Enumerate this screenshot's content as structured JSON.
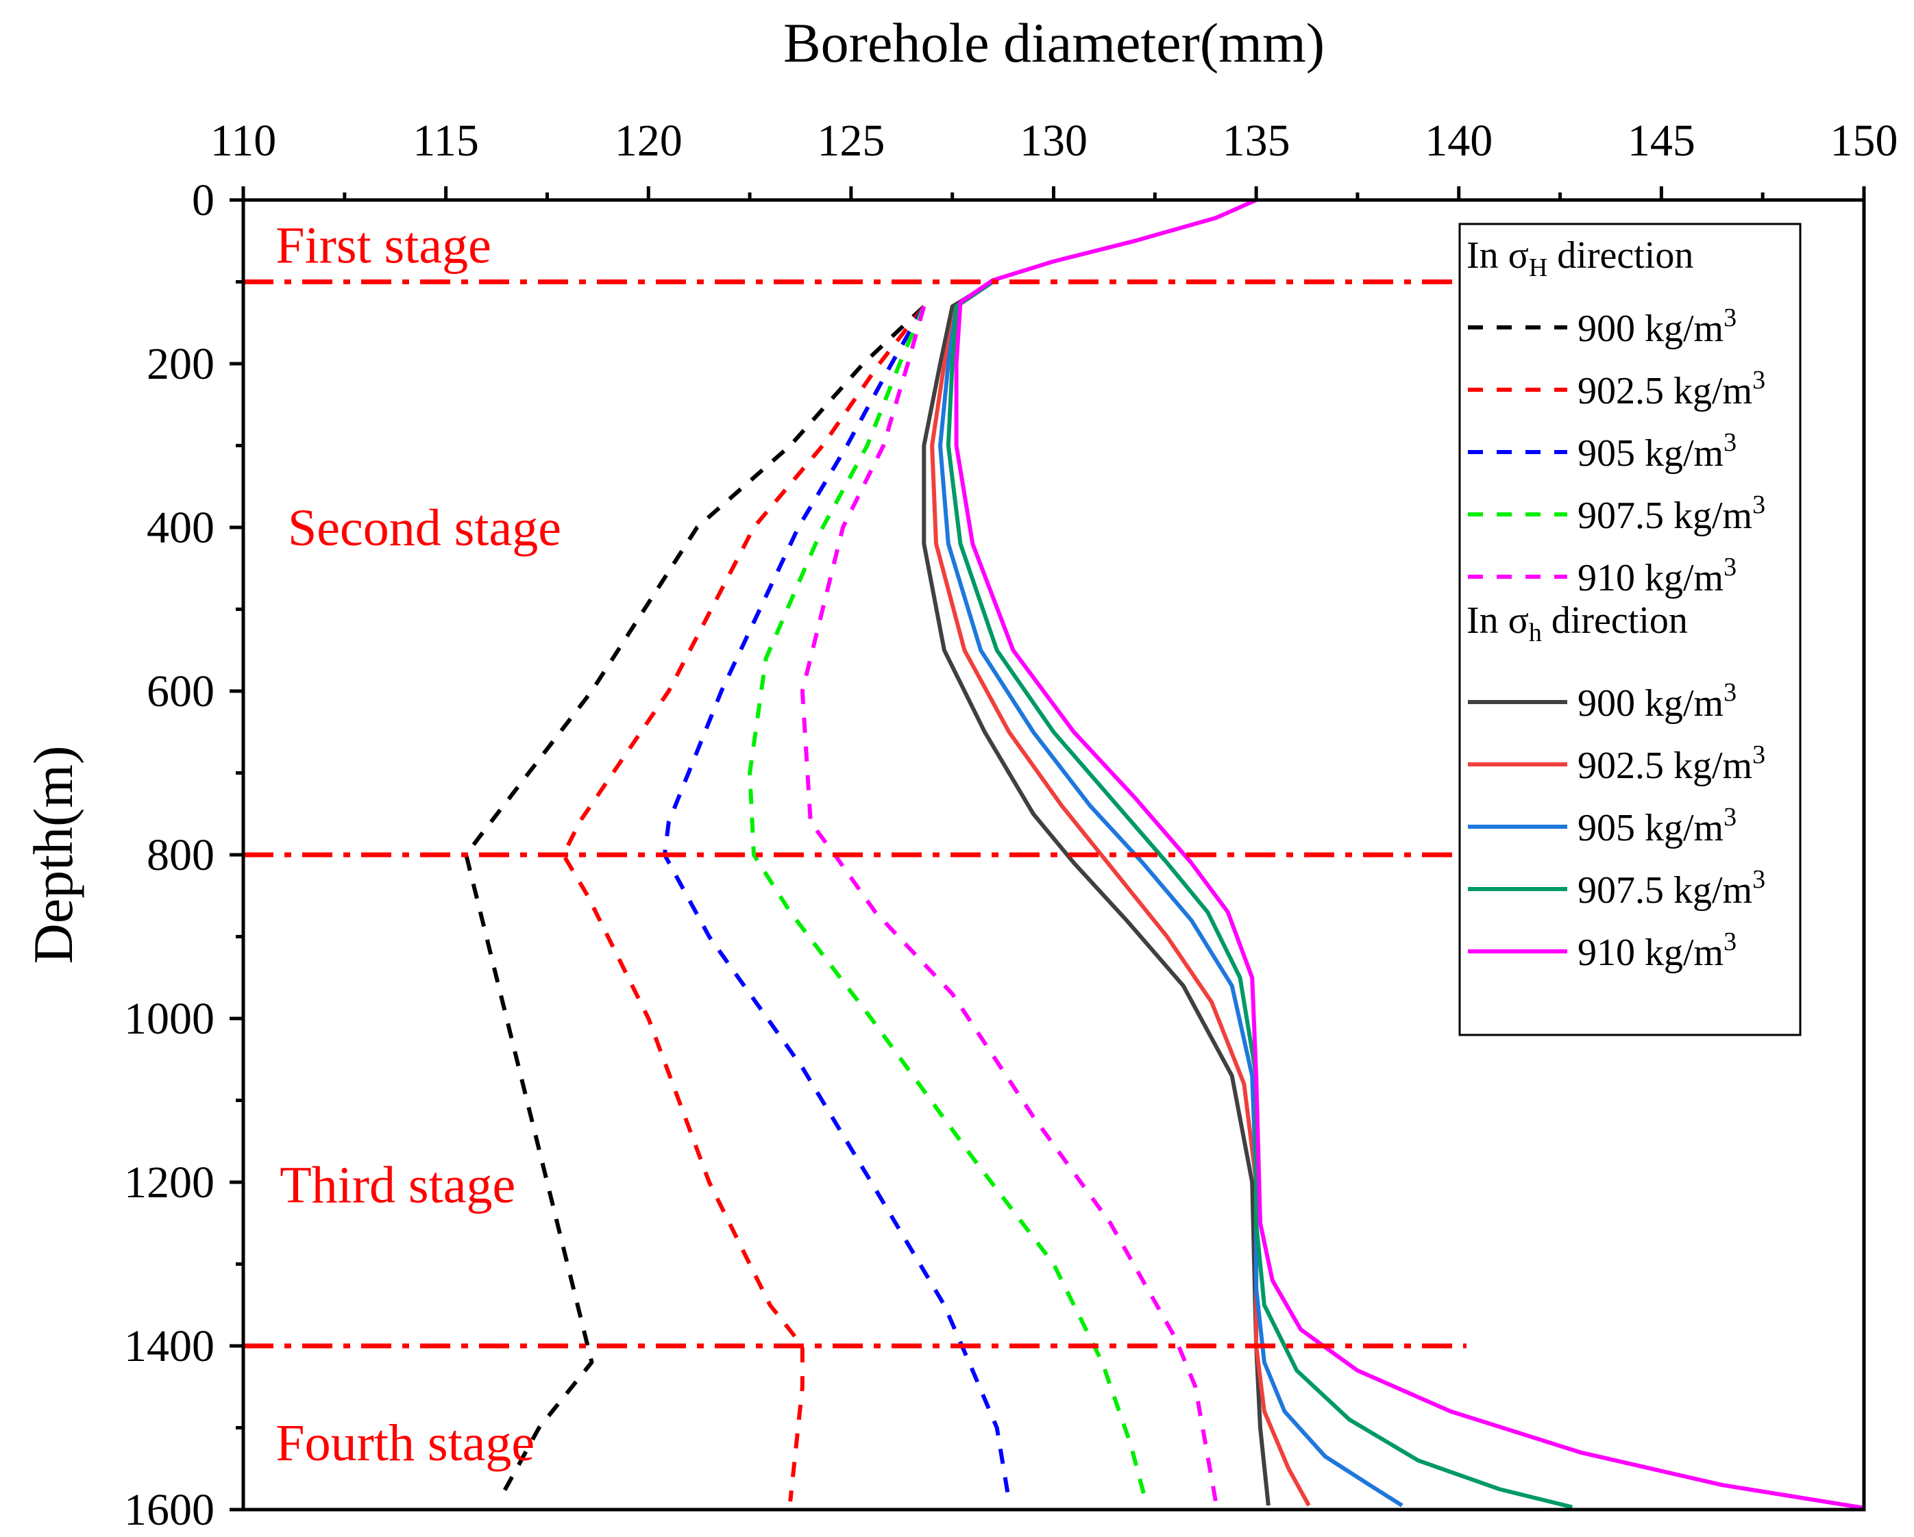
{
  "chart_data": {
    "type": "line",
    "xlabel": "Borehole diameter(mm)",
    "ylabel": "Depth(m)",
    "xlim": [
      110,
      150
    ],
    "ylim": [
      0,
      1600
    ],
    "x_ticks": [
      "110",
      "115",
      "120",
      "125",
      "130",
      "135",
      "140",
      "145",
      "150"
    ],
    "y_ticks": [
      "0",
      "200",
      "400",
      "600",
      "800",
      "1000",
      "1200",
      "1400",
      "1600"
    ],
    "stage_lines": [
      100,
      800,
      1400
    ],
    "stage_labels": [
      {
        "text": "First stage",
        "x": 110.8,
        "y": 55
      },
      {
        "text": "Second stage",
        "x": 111.1,
        "y": 400
      },
      {
        "text": "Third stage",
        "x": 110.9,
        "y": 1203
      },
      {
        "text": "Fourth stage",
        "x": 110.8,
        "y": 1518
      }
    ],
    "legend": {
      "position": "top-right",
      "group_H_prefix": "In σ",
      "group_H_sub": "H",
      "group_h_prefix": "In σ",
      "group_h_sub": "h",
      "group_suffix": " direction",
      "unit_prefix": " kg/m",
      "unit_sup": "3"
    },
    "series": [
      {
        "name": "900",
        "group": "H",
        "style": "dashed",
        "color": "#000000",
        "points": [
          [
            126.8,
            130
          ],
          [
            125.3,
            200
          ],
          [
            123.5,
            300
          ],
          [
            121.2,
            400
          ],
          [
            118.6,
            600
          ],
          [
            115.8,
            780
          ],
          [
            115.5,
            800
          ],
          [
            116.0,
            900
          ],
          [
            117.0,
            1100
          ],
          [
            118.0,
            1300
          ],
          [
            118.6,
            1420
          ],
          [
            117.3,
            1500
          ],
          [
            116.3,
            1590
          ]
        ]
      },
      {
        "name": "902.5",
        "group": "H",
        "style": "dashed",
        "color": "#ff0000",
        "points": [
          [
            126.8,
            130
          ],
          [
            125.7,
            200
          ],
          [
            124.3,
            300
          ],
          [
            122.6,
            400
          ],
          [
            120.5,
            600
          ],
          [
            118.3,
            760
          ],
          [
            117.9,
            800
          ],
          [
            118.5,
            850
          ],
          [
            120.0,
            1000
          ],
          [
            121.5,
            1200
          ],
          [
            123.0,
            1350
          ],
          [
            123.8,
            1400
          ],
          [
            123.8,
            1450
          ],
          [
            123.5,
            1590
          ]
        ]
      },
      {
        "name": "905",
        "group": "H",
        "style": "dashed",
        "color": "#0000ff",
        "points": [
          [
            126.8,
            130
          ],
          [
            126.0,
            200
          ],
          [
            124.9,
            300
          ],
          [
            123.7,
            400
          ],
          [
            121.8,
            600
          ],
          [
            120.5,
            760
          ],
          [
            120.4,
            800
          ],
          [
            121.5,
            900
          ],
          [
            123.8,
            1060
          ],
          [
            125.5,
            1200
          ],
          [
            127.3,
            1350
          ],
          [
            128.0,
            1430
          ],
          [
            128.6,
            1500
          ],
          [
            128.9,
            1590
          ]
        ]
      },
      {
        "name": "907.5",
        "group": "H",
        "style": "dashed",
        "color": "#00ee00",
        "points": [
          [
            126.8,
            130
          ],
          [
            126.2,
            200
          ],
          [
            125.4,
            300
          ],
          [
            124.3,
            400
          ],
          [
            122.9,
            560
          ],
          [
            122.5,
            700
          ],
          [
            122.6,
            800
          ],
          [
            123.5,
            870
          ],
          [
            125.5,
            1000
          ],
          [
            128.0,
            1170
          ],
          [
            130.0,
            1300
          ],
          [
            131.2,
            1420
          ],
          [
            131.9,
            1520
          ],
          [
            132.3,
            1595
          ]
        ]
      },
      {
        "name": "910",
        "group": "H",
        "style": "dashed",
        "color": "#ff00ff",
        "points": [
          [
            126.8,
            130
          ],
          [
            126.4,
            200
          ],
          [
            125.8,
            300
          ],
          [
            124.8,
            400
          ],
          [
            123.8,
            600
          ],
          [
            124.0,
            760
          ],
          [
            124.6,
            800
          ],
          [
            125.6,
            870
          ],
          [
            127.5,
            970
          ],
          [
            129.5,
            1120
          ],
          [
            131.4,
            1250
          ],
          [
            133.0,
            1390
          ],
          [
            133.5,
            1450
          ],
          [
            134.0,
            1590
          ]
        ]
      },
      {
        "name": "900",
        "group": "h",
        "style": "solid",
        "color": "#404040",
        "points": [
          [
            128.5,
            100
          ],
          [
            127.5,
            130
          ],
          [
            127.2,
            200
          ],
          [
            126.8,
            300
          ],
          [
            126.8,
            420
          ],
          [
            127.3,
            550
          ],
          [
            128.3,
            650
          ],
          [
            129.5,
            750
          ],
          [
            130.5,
            810
          ],
          [
            131.8,
            880
          ],
          [
            133.2,
            960
          ],
          [
            134.4,
            1070
          ],
          [
            134.9,
            1200
          ],
          [
            135.0,
            1400
          ],
          [
            135.1,
            1500
          ],
          [
            135.3,
            1595
          ]
        ]
      },
      {
        "name": "902.5",
        "group": "h",
        "style": "solid",
        "color": "#f0403c",
        "points": [
          [
            128.5,
            100
          ],
          [
            127.6,
            130
          ],
          [
            127.3,
            200
          ],
          [
            127.0,
            300
          ],
          [
            127.1,
            420
          ],
          [
            127.8,
            550
          ],
          [
            128.9,
            650
          ],
          [
            130.2,
            740
          ],
          [
            131.5,
            820
          ],
          [
            132.8,
            900
          ],
          [
            133.9,
            980
          ],
          [
            134.7,
            1080
          ],
          [
            135.0,
            1200
          ],
          [
            135.0,
            1400
          ],
          [
            135.2,
            1480
          ],
          [
            135.8,
            1550
          ],
          [
            136.3,
            1595
          ]
        ]
      },
      {
        "name": "905",
        "group": "h",
        "style": "solid",
        "color": "#1e78dc",
        "points": [
          [
            128.5,
            100
          ],
          [
            127.6,
            130
          ],
          [
            127.4,
            200
          ],
          [
            127.2,
            300
          ],
          [
            127.4,
            420
          ],
          [
            128.2,
            550
          ],
          [
            129.5,
            650
          ],
          [
            130.9,
            740
          ],
          [
            132.2,
            810
          ],
          [
            133.4,
            880
          ],
          [
            134.4,
            960
          ],
          [
            134.9,
            1070
          ],
          [
            135.0,
            1200
          ],
          [
            135.0,
            1330
          ],
          [
            135.2,
            1420
          ],
          [
            135.7,
            1480
          ],
          [
            136.7,
            1535
          ],
          [
            137.8,
            1570
          ],
          [
            138.6,
            1595
          ]
        ]
      },
      {
        "name": "907.5",
        "group": "h",
        "style": "solid",
        "color": "#009966",
        "points": [
          [
            128.5,
            100
          ],
          [
            127.6,
            130
          ],
          [
            127.5,
            200
          ],
          [
            127.4,
            300
          ],
          [
            127.7,
            420
          ],
          [
            128.6,
            550
          ],
          [
            130.0,
            650
          ],
          [
            131.4,
            730
          ],
          [
            132.8,
            810
          ],
          [
            133.8,
            870
          ],
          [
            134.6,
            950
          ],
          [
            135.0,
            1070
          ],
          [
            135.0,
            1250
          ],
          [
            135.2,
            1350
          ],
          [
            136.0,
            1430
          ],
          [
            137.3,
            1490
          ],
          [
            139.0,
            1540
          ],
          [
            141.0,
            1575
          ],
          [
            142.8,
            1597
          ]
        ]
      },
      {
        "name": "910",
        "group": "h",
        "style": "solid",
        "color": "#ff00ff",
        "points": [
          [
            135.0,
            0
          ],
          [
            134.0,
            22
          ],
          [
            132.0,
            50
          ],
          [
            130.0,
            75
          ],
          [
            128.5,
            98
          ],
          [
            127.7,
            125
          ],
          [
            127.6,
            200
          ],
          [
            127.6,
            300
          ],
          [
            128.0,
            420
          ],
          [
            129.0,
            550
          ],
          [
            130.5,
            650
          ],
          [
            132.0,
            730
          ],
          [
            133.4,
            810
          ],
          [
            134.3,
            870
          ],
          [
            134.9,
            950
          ],
          [
            135.0,
            1070
          ],
          [
            135.1,
            1250
          ],
          [
            135.4,
            1320
          ],
          [
            136.1,
            1380
          ],
          [
            137.5,
            1430
          ],
          [
            139.8,
            1480
          ],
          [
            143.0,
            1530
          ],
          [
            146.5,
            1570
          ],
          [
            150.0,
            1598
          ]
        ]
      }
    ]
  }
}
